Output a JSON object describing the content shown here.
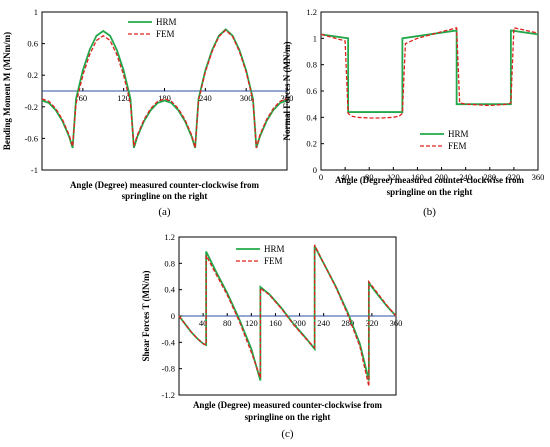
{
  "colors": {
    "hrm": "#22a84a",
    "fem": "#e0201c",
    "axis": "#000000",
    "zero": "#2b4ea2"
  },
  "chart_data": [
    {
      "id": "a",
      "type": "line",
      "panel_label": "(a)",
      "xlabel_lines": [
        "Angle (Degree) measured counter-clockwise from",
        "springline on the right"
      ],
      "ylabel": "Bending Moment M (MNm/m)",
      "xlim": [
        0,
        360
      ],
      "ylim": [
        -1,
        1
      ],
      "x_ticks": [
        60,
        120,
        180,
        240,
        300,
        360
      ],
      "y_ticks": [
        -1,
        -0.6,
        -0.2,
        0.2,
        0.6,
        1
      ],
      "x_tick_labels": [
        "60",
        "120",
        "180",
        "240",
        "300",
        "360"
      ],
      "y_tick_labels": [
        "-1",
        "-0.6",
        "-0.2",
        "0.2",
        "0.6",
        "1"
      ],
      "x_axis_at": 0,
      "legend_position": "top-center",
      "series": [
        {
          "name": "HRM",
          "style": "solid",
          "x": [
            0,
            10,
            20,
            30,
            40,
            45,
            50,
            60,
            70,
            80,
            90,
            100,
            110,
            120,
            130,
            135,
            140,
            150,
            160,
            170,
            180,
            190,
            200,
            210,
            220,
            225,
            230,
            240,
            250,
            260,
            270,
            280,
            290,
            300,
            310,
            315,
            320,
            330,
            340,
            350,
            360
          ],
          "y": [
            -0.12,
            -0.15,
            -0.24,
            -0.38,
            -0.58,
            -0.72,
            -0.1,
            0.26,
            0.52,
            0.7,
            0.76,
            0.7,
            0.52,
            0.26,
            -0.1,
            -0.72,
            -0.58,
            -0.38,
            -0.24,
            -0.15,
            -0.12,
            -0.15,
            -0.24,
            -0.38,
            -0.58,
            -0.72,
            -0.1,
            0.26,
            0.52,
            0.7,
            0.78,
            0.7,
            0.52,
            0.26,
            -0.1,
            -0.72,
            -0.58,
            -0.38,
            -0.24,
            -0.15,
            -0.12
          ]
        },
        {
          "name": "FEM",
          "style": "dashed",
          "x": [
            0,
            10,
            20,
            30,
            40,
            45,
            50,
            60,
            70,
            80,
            90,
            100,
            110,
            120,
            130,
            135,
            140,
            150,
            160,
            170,
            180,
            190,
            200,
            210,
            220,
            225,
            230,
            240,
            250,
            260,
            270,
            280,
            290,
            300,
            310,
            315,
            320,
            330,
            340,
            350,
            360
          ],
          "y": [
            -0.1,
            -0.13,
            -0.22,
            -0.36,
            -0.56,
            -0.7,
            -0.16,
            0.2,
            0.46,
            0.64,
            0.7,
            0.64,
            0.46,
            0.2,
            -0.16,
            -0.7,
            -0.56,
            -0.36,
            -0.22,
            -0.13,
            -0.1,
            -0.13,
            -0.22,
            -0.36,
            -0.56,
            -0.72,
            -0.12,
            0.24,
            0.5,
            0.69,
            0.77,
            0.69,
            0.5,
            0.24,
            -0.12,
            -0.72,
            -0.56,
            -0.36,
            -0.22,
            -0.13,
            -0.1
          ]
        }
      ]
    },
    {
      "id": "b",
      "type": "line",
      "panel_label": "(b)",
      "xlabel_lines": [
        "Angle (Degree) measured counter-clockwise from",
        "springline on the right"
      ],
      "ylabel": "Normal Forces N (MN/m)",
      "xlim": [
        0,
        360
      ],
      "ylim": [
        0,
        1.2
      ],
      "x_ticks": [
        0,
        40,
        80,
        120,
        160,
        200,
        240,
        280,
        320,
        360
      ],
      "y_ticks": [
        0,
        0.2,
        0.4,
        0.6,
        0.8,
        1,
        1.2
      ],
      "x_tick_labels": [
        "0",
        "40",
        "80",
        "120",
        "160",
        "200",
        "240",
        "280",
        "320",
        "360"
      ],
      "y_tick_labels": [
        "0",
        "0.2",
        "0.4",
        "0.6",
        "0.8",
        "1",
        "1.2"
      ],
      "x_axis_at": 0,
      "legend_position": "bottom-right",
      "series": [
        {
          "name": "HRM",
          "style": "solid",
          "x": [
            0,
            45,
            45,
            135,
            135,
            225,
            225,
            315,
            315,
            360
          ],
          "y": [
            1.03,
            1.0,
            0.44,
            0.44,
            1.0,
            1.06,
            0.5,
            0.5,
            1.06,
            1.03
          ]
        },
        {
          "name": "FEM",
          "style": "dashed",
          "x": [
            0,
            40,
            45,
            50,
            60,
            80,
            100,
            120,
            130,
            135,
            140,
            160,
            200,
            225,
            230,
            240,
            280,
            310,
            315,
            320,
            340,
            360
          ],
          "y": [
            1.03,
            0.98,
            0.43,
            0.41,
            0.4,
            0.395,
            0.395,
            0.4,
            0.41,
            0.43,
            0.96,
            1.0,
            1.05,
            1.08,
            0.51,
            0.5,
            0.49,
            0.5,
            0.51,
            1.08,
            1.06,
            1.04
          ]
        }
      ]
    },
    {
      "id": "c",
      "type": "line",
      "panel_label": "(c)",
      "xlabel_lines": [
        "Angle (Degree) measured counter-clockwise from",
        "springline on the right"
      ],
      "ylabel": "Shear Forces T (MN/m)",
      "xlim": [
        0,
        360
      ],
      "ylim": [
        -1.2,
        1.2
      ],
      "x_ticks": [
        40,
        80,
        120,
        160,
        200,
        240,
        280,
        320,
        360
      ],
      "y_ticks": [
        -1.2,
        -0.8,
        -0.4,
        0,
        0.4,
        0.8,
        1.2
      ],
      "x_tick_labels": [
        "40",
        "80",
        "120",
        "160",
        "200",
        "240",
        "280",
        "320",
        "360"
      ],
      "y_tick_labels": [
        "-1.2",
        "-0.8",
        "-0.4",
        "0",
        "0.4",
        "0.8",
        "1.2"
      ],
      "x_axis_at": 0,
      "legend_position": "top-center",
      "series": [
        {
          "name": "HRM",
          "style": "solid",
          "x": [
            0,
            10,
            20,
            30,
            40,
            45,
            45,
            60,
            80,
            100,
            120,
            135,
            135,
            150,
            170,
            190,
            210,
            225,
            225,
            240,
            260,
            280,
            300,
            315,
            315,
            330,
            345,
            360
          ],
          "y": [
            0,
            -0.12,
            -0.24,
            -0.34,
            -0.42,
            -0.44,
            0.98,
            0.7,
            0.35,
            -0.05,
            -0.5,
            -0.98,
            0.44,
            0.33,
            0.12,
            -0.12,
            -0.33,
            -0.5,
            1.06,
            0.8,
            0.45,
            0.05,
            -0.42,
            -0.98,
            0.5,
            0.32,
            0.15,
            0
          ]
        },
        {
          "name": "FEM",
          "style": "dashed",
          "x": [
            0,
            10,
            20,
            30,
            40,
            45,
            45,
            60,
            80,
            100,
            120,
            135,
            135,
            150,
            170,
            190,
            210,
            225,
            225,
            240,
            260,
            280,
            300,
            315,
            315,
            330,
            345,
            360
          ],
          "y": [
            0,
            -0.12,
            -0.24,
            -0.34,
            -0.42,
            -0.44,
            0.92,
            0.66,
            0.32,
            -0.08,
            -0.55,
            -0.94,
            0.42,
            0.32,
            0.11,
            -0.13,
            -0.34,
            -0.48,
            1.08,
            0.8,
            0.44,
            0.02,
            -0.46,
            -1.07,
            0.52,
            0.34,
            0.16,
            0
          ]
        }
      ]
    }
  ]
}
